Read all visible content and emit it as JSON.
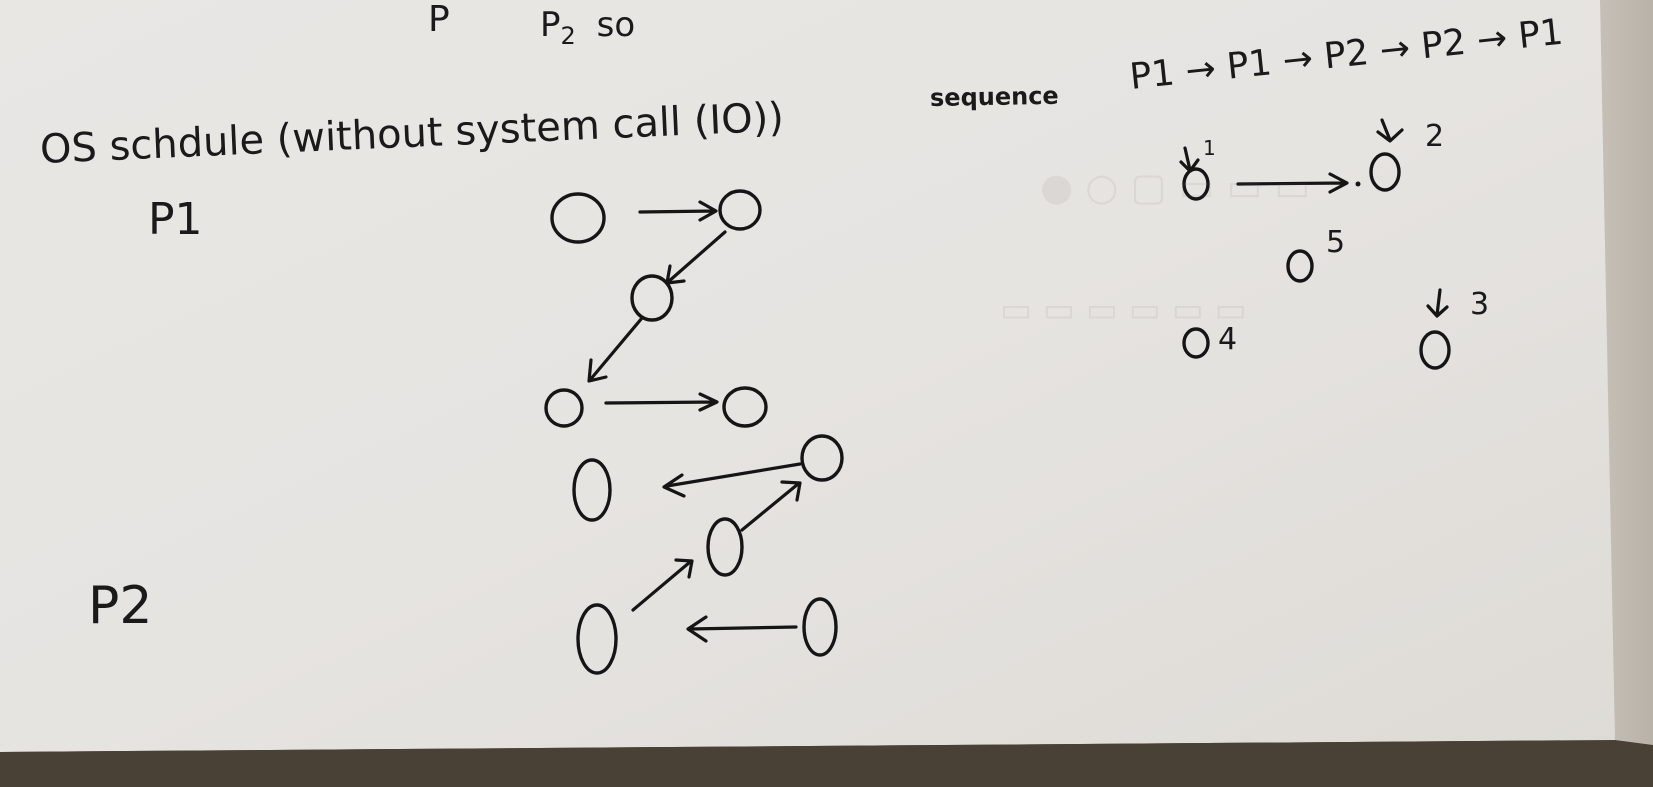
{
  "top_fragment": {
    "left_mark": "P",
    "right_mark": "P",
    "right_subscript": "2",
    "right_suffix": "so"
  },
  "title": "OS schdule (without system call (IO))",
  "sequence_label": "sequence",
  "sequence_expr": "P1 → P1 → P2 → P2 → P1",
  "process_labels": {
    "p1": "P1",
    "p2": "P2"
  },
  "sequence_node_numbers": [
    "1",
    "2",
    "3",
    "4",
    "5"
  ]
}
